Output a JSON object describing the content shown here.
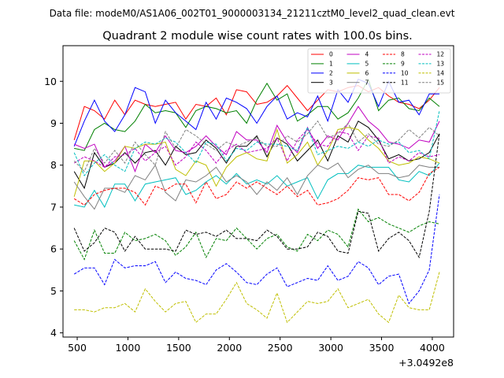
{
  "figure": {
    "suptitle": "Data file: modeM0/AS1A06_002T01_9000003134_21211cztM0_level2_quad_clean.evt",
    "title": "Quadrant 2 module wise count rates with 100.0s bins."
  },
  "chart_data": {
    "type": "line",
    "title": "Quadrant 2 module wise count rates with 100.0s bins.",
    "xlabel": "",
    "ylabel": "",
    "x_offset_label": "+3.0492e8",
    "x_offset": 304920000,
    "xlim": [
      360,
      4210
    ],
    "ylim": [
      3.9,
      10.85
    ],
    "xticks": [
      500,
      1000,
      1500,
      2000,
      2500,
      3000,
      3500,
      4000
    ],
    "yticks": [
      4,
      5,
      6,
      7,
      8,
      9,
      10
    ],
    "x": [
      470,
      570,
      670,
      770,
      870,
      970,
      1070,
      1170,
      1270,
      1370,
      1470,
      1570,
      1670,
      1770,
      1870,
      1970,
      2070,
      2170,
      2270,
      2370,
      2470,
      2570,
      2670,
      2770,
      2870,
      2970,
      3070,
      3170,
      3270,
      3370,
      3470,
      3570,
      3670,
      3770,
      3870,
      3970,
      4070
    ],
    "grid": false,
    "legend_position": "top-right",
    "legend_columns": 4,
    "series": [
      {
        "name": "0",
        "color": "#ff0000",
        "dash": "solid",
        "values": [
          8.6,
          9.4,
          9.3,
          9.1,
          9.55,
          9.2,
          9.55,
          9.45,
          9.4,
          9.45,
          9.5,
          9.1,
          9.45,
          9.4,
          9.6,
          9.2,
          9.8,
          9.75,
          9.45,
          9.5,
          9.65,
          9.9,
          9.6,
          9.3,
          9.55,
          9.8,
          9.75,
          9.85,
          9.9,
          9.75,
          9.85,
          9.65,
          9.5,
          9.45,
          9.35,
          9.55,
          9.85
        ]
      },
      {
        "name": "1",
        "color": "#008000",
        "dash": "solid",
        "values": [
          8.4,
          8.35,
          8.85,
          9.0,
          8.85,
          8.8,
          9.05,
          9.45,
          9.25,
          9.3,
          9.25,
          8.9,
          9.3,
          9.4,
          9.35,
          9.25,
          9.3,
          9.0,
          9.55,
          9.95,
          9.55,
          9.7,
          9.05,
          9.2,
          9.4,
          9.4,
          9.1,
          9.25,
          9.6,
          10.05,
          9.3,
          9.55,
          9.6,
          9.35,
          9.3,
          9.6,
          9.4
        ]
      },
      {
        "name": "2",
        "color": "#0000ff",
        "dash": "solid",
        "values": [
          8.45,
          9.05,
          9.55,
          9.05,
          8.8,
          9.2,
          9.85,
          9.75,
          9.0,
          9.55,
          9.25,
          9.05,
          8.85,
          9.5,
          9.1,
          9.6,
          9.5,
          9.35,
          9.0,
          9.4,
          9.65,
          9.1,
          9.25,
          9.15,
          9.65,
          9.05,
          9.8,
          9.5,
          10.05,
          9.95,
          9.4,
          10.0,
          9.5,
          9.55,
          9.2,
          9.7,
          9.7
        ]
      },
      {
        "name": "3",
        "color": "#000000",
        "dash": "solid",
        "values": [
          7.85,
          7.45,
          8.3,
          7.95,
          8.05,
          8.3,
          8.05,
          8.3,
          8.35,
          8.0,
          8.45,
          8.25,
          8.3,
          8.6,
          8.4,
          8.05,
          8.45,
          8.45,
          8.7,
          8.2,
          8.65,
          8.5,
          8.1,
          8.35,
          8.6,
          8.1,
          8.7,
          8.55,
          9.05,
          8.9,
          8.6,
          8.15,
          8.25,
          8.1,
          8.15,
          8.3,
          8.75
        ]
      },
      {
        "name": "4",
        "color": "#c000c0",
        "dash": "solid",
        "values": [
          8.5,
          8.4,
          8.5,
          7.95,
          8.1,
          8.45,
          7.85,
          8.5,
          8.3,
          8.7,
          8.35,
          8.3,
          8.45,
          8.7,
          8.45,
          8.25,
          8.8,
          8.6,
          8.6,
          8.3,
          8.95,
          8.55,
          8.3,
          8.9,
          8.4,
          8.7,
          8.6,
          9.0,
          9.4,
          9.05,
          8.85,
          8.55,
          8.5,
          8.4,
          8.6,
          8.55,
          9.05
        ]
      },
      {
        "name": "5",
        "color": "#00bfbf",
        "dash": "solid",
        "values": [
          7.05,
          7.0,
          7.4,
          7.0,
          7.55,
          7.55,
          7.15,
          7.55,
          7.6,
          7.65,
          7.7,
          7.3,
          7.4,
          7.6,
          7.75,
          7.55,
          7.8,
          7.55,
          7.65,
          7.55,
          7.75,
          7.5,
          7.6,
          7.7,
          7.2,
          7.65,
          7.8,
          7.8,
          8.0,
          7.95,
          7.95,
          7.95,
          7.65,
          7.6,
          7.85,
          7.75,
          8.05
        ]
      },
      {
        "name": "6",
        "color": "#bfbf00",
        "dash": "solid",
        "values": [
          7.25,
          8.1,
          8.1,
          7.85,
          8.05,
          8.45,
          8.4,
          8.5,
          8.5,
          8.55,
          7.9,
          7.75,
          8.1,
          8.0,
          7.5,
          7.95,
          8.2,
          8.3,
          8.15,
          8.1,
          8.85,
          8.05,
          8.25,
          8.55,
          8.0,
          8.35,
          8.85,
          8.9,
          8.85,
          8.6,
          8.4,
          8.1,
          8.0,
          8.05,
          8.2,
          8.15,
          8.05
        ]
      },
      {
        "name": "7",
        "color": "#808080",
        "dash": "solid",
        "values": [
          7.6,
          7.25,
          6.95,
          7.45,
          7.45,
          7.35,
          7.75,
          7.65,
          8.0,
          7.35,
          7.15,
          7.65,
          7.6,
          7.75,
          7.95,
          7.6,
          7.75,
          7.6,
          7.3,
          7.6,
          7.4,
          7.7,
          7.3,
          7.75,
          8.0,
          7.9,
          8.05,
          7.7,
          7.9,
          8.0,
          7.8,
          7.8,
          7.7,
          7.75,
          8.0,
          7.95,
          7.95
        ]
      },
      {
        "name": "8",
        "color": "#ff0000",
        "dash": "dashed",
        "values": [
          7.2,
          7.05,
          7.3,
          7.4,
          7.45,
          7.45,
          7.35,
          7.05,
          7.5,
          7.4,
          7.55,
          7.55,
          7.1,
          7.6,
          7.2,
          7.3,
          7.6,
          7.45,
          7.6,
          7.45,
          7.3,
          7.5,
          7.25,
          7.4,
          7.05,
          7.1,
          7.2,
          7.4,
          7.7,
          7.65,
          7.7,
          7.3,
          7.3,
          7.15,
          7.35,
          7.8,
          7.95
        ]
      },
      {
        "name": "9",
        "color": "#008000",
        "dash": "dashed",
        "values": [
          6.2,
          5.75,
          6.45,
          5.9,
          5.9,
          6.4,
          6.2,
          6.25,
          6.35,
          6.2,
          5.85,
          6.05,
          6.4,
          5.8,
          6.25,
          6.2,
          6.5,
          6.25,
          6.0,
          6.25,
          6.35,
          6.05,
          5.95,
          6.35,
          6.2,
          6.45,
          6.35,
          6.05,
          6.95,
          6.65,
          6.75,
          6.6,
          6.5,
          6.4,
          6.55,
          6.65,
          6.6
        ]
      },
      {
        "name": "10",
        "color": "#0000ff",
        "dash": "dashed",
        "values": [
          5.4,
          5.55,
          5.55,
          5.15,
          5.75,
          5.55,
          5.6,
          5.6,
          5.7,
          5.2,
          5.45,
          5.3,
          5.25,
          5.15,
          5.5,
          5.65,
          5.45,
          5.2,
          5.15,
          5.4,
          5.55,
          5.1,
          5.2,
          5.3,
          5.25,
          5.6,
          5.25,
          5.35,
          5.7,
          5.55,
          5.15,
          5.35,
          5.4,
          4.7,
          5.0,
          5.5,
          7.3
        ]
      },
      {
        "name": "11",
        "color": "#000000",
        "dash": "dashed",
        "values": [
          6.5,
          5.95,
          6.15,
          6.5,
          6.4,
          5.95,
          6.3,
          6.0,
          6.0,
          6.0,
          5.95,
          6.45,
          6.35,
          6.4,
          6.3,
          6.45,
          6.25,
          6.25,
          6.2,
          6.45,
          6.3,
          6.0,
          6.0,
          6.05,
          6.4,
          6.3,
          5.95,
          5.9,
          6.9,
          6.85,
          5.95,
          6.25,
          6.4,
          6.2,
          5.8,
          6.9,
          8.75
        ]
      },
      {
        "name": "12",
        "color": "#c000c0",
        "dash": "dashed",
        "values": [
          8.05,
          8.2,
          8.1,
          7.95,
          8.2,
          8.25,
          8.4,
          8.1,
          8.3,
          8.45,
          8.0,
          8.2,
          8.55,
          8.35,
          8.05,
          8.35,
          8.5,
          8.3,
          8.35,
          8.4,
          8.65,
          8.1,
          8.6,
          8.85,
          8.5,
          8.45,
          8.8,
          8.75,
          8.35,
          8.7,
          8.65,
          8.05,
          8.2,
          8.1,
          8.3,
          8.2,
          8.25
        ]
      },
      {
        "name": "13",
        "color": "#00bfbf",
        "dash": "dashed",
        "values": [
          8.3,
          7.75,
          8.05,
          8.25,
          8.0,
          7.85,
          8.4,
          8.55,
          8.5,
          8.65,
          8.55,
          8.3,
          8.05,
          8.55,
          8.5,
          8.1,
          8.4,
          8.35,
          8.55,
          8.5,
          8.5,
          8.45,
          8.35,
          8.9,
          8.25,
          8.35,
          8.45,
          8.4,
          8.55,
          8.45,
          8.6,
          8.5,
          8.55,
          8.3,
          8.35,
          8.15,
          9.3
        ]
      },
      {
        "name": "14",
        "color": "#bfbf00",
        "dash": "dashed",
        "values": [
          4.55,
          4.55,
          4.5,
          4.6,
          4.6,
          4.7,
          4.5,
          5.05,
          4.75,
          4.5,
          4.7,
          4.75,
          4.25,
          4.45,
          4.45,
          4.8,
          5.2,
          4.7,
          4.55,
          4.35,
          4.95,
          4.25,
          4.5,
          4.75,
          4.7,
          4.75,
          5.05,
          4.6,
          4.7,
          4.8,
          4.45,
          4.25,
          4.9,
          4.6,
          4.55,
          4.55,
          5.45
        ]
      },
      {
        "name": "15",
        "color": "#808080",
        "dash": "dashed",
        "values": [
          8.1,
          7.85,
          8.4,
          8.05,
          8.35,
          8.05,
          8.55,
          8.25,
          8.0,
          8.8,
          8.4,
          8.85,
          8.7,
          8.5,
          8.35,
          8.55,
          8.45,
          8.55,
          8.65,
          8.45,
          8.45,
          8.7,
          8.55,
          8.75,
          9.05,
          8.65,
          8.75,
          9.0,
          8.55,
          8.75,
          8.5,
          8.45,
          8.6,
          8.85,
          8.65,
          8.9,
          8.7
        ]
      }
    ]
  }
}
